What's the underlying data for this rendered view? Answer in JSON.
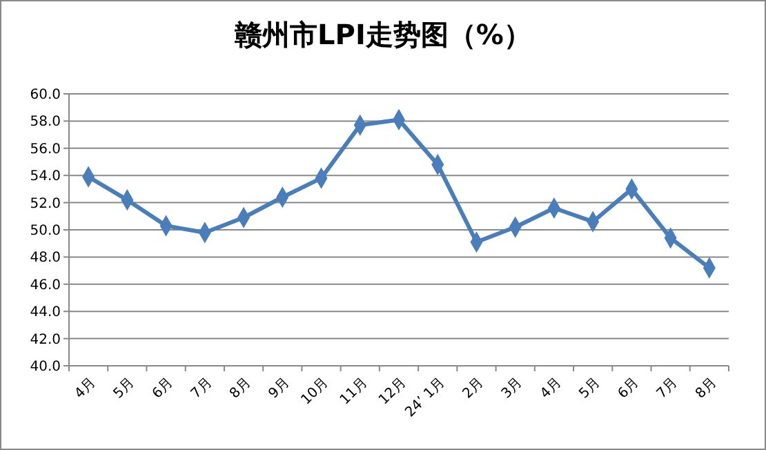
{
  "chart_data": {
    "type": "line",
    "title": "赣州市LPI走势图（%）",
    "categories": [
      "4月",
      "5月",
      "6月",
      "7月",
      "8月",
      "9月",
      "10月",
      "11月",
      "12月",
      "24’ 1月",
      "2月",
      "3月",
      "4月",
      "5月",
      "6月",
      "7月",
      "8月"
    ],
    "series": [
      {
        "color": "#4a7ebb",
        "values": [
          53.9,
          52.2,
          50.3,
          49.8,
          50.9,
          52.4,
          53.8,
          57.7,
          58.1,
          54.8,
          49.1,
          50.2,
          51.6,
          50.6,
          53.0,
          49.4,
          47.2
        ]
      }
    ],
    "ylim": [
      40,
      60
    ],
    "yticks": [
      {
        "value": 40,
        "label": "40.0"
      },
      {
        "value": 42,
        "label": "42.0"
      },
      {
        "value": 44,
        "label": "44.0"
      },
      {
        "value": 46,
        "label": "46.0"
      },
      {
        "value": 48,
        "label": "48.0"
      },
      {
        "value": 50,
        "label": "50.0"
      },
      {
        "value": 52,
        "label": "52.0"
      },
      {
        "value": 54,
        "label": "54.0"
      },
      {
        "value": 56,
        "label": "56.0"
      },
      {
        "value": 58,
        "label": "58.0"
      },
      {
        "value": 60,
        "label": "60.0"
      }
    ],
    "grid": "y",
    "marker": "diamond",
    "line_style": "solid"
  }
}
